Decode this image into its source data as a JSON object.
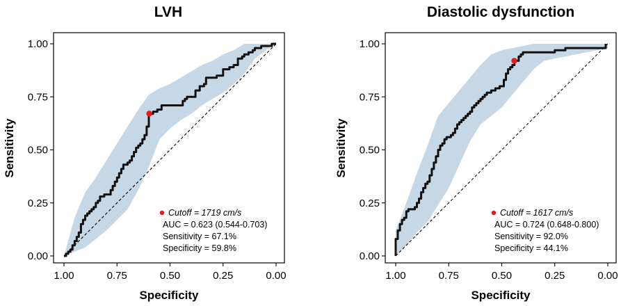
{
  "chart_data": [
    {
      "type": "line",
      "title": "LVH",
      "xlabel": "Specificity",
      "ylabel": "Sensitivity",
      "xlim": [
        1.0,
        0.0
      ],
      "ylim": [
        0.0,
        1.0
      ],
      "xticks": [
        "1.00",
        "0.75",
        "0.50",
        "0.25",
        "0.00"
      ],
      "yticks": [
        "0.00",
        "0.25",
        "0.50",
        "0.75",
        "1.00"
      ],
      "colors": {
        "curve": "#111111",
        "band": "#c6d7e6",
        "cutoff": "#e41a1c",
        "diagonal": "#000000"
      },
      "roc": {
        "specificity": [
          1.0,
          0.99,
          0.98,
          0.97,
          0.96,
          0.95,
          0.94,
          0.93,
          0.92,
          0.91,
          0.9,
          0.89,
          0.88,
          0.87,
          0.86,
          0.85,
          0.84,
          0.83,
          0.82,
          0.81,
          0.8,
          0.79,
          0.78,
          0.77,
          0.76,
          0.75,
          0.74,
          0.73,
          0.72,
          0.71,
          0.7,
          0.69,
          0.68,
          0.67,
          0.66,
          0.65,
          0.64,
          0.63,
          0.62,
          0.61,
          0.6,
          0.58,
          0.56,
          0.55,
          0.54,
          0.5,
          0.45,
          0.44,
          0.43,
          0.42,
          0.4,
          0.38,
          0.36,
          0.34,
          0.33,
          0.32,
          0.3,
          0.28,
          0.25,
          0.22,
          0.2,
          0.18,
          0.16,
          0.15,
          0.13,
          0.11,
          0.1,
          0.07,
          0.04,
          0.02,
          0.0
        ],
        "sensitivity": [
          0.0,
          0.01,
          0.02,
          0.03,
          0.05,
          0.07,
          0.09,
          0.11,
          0.15,
          0.17,
          0.19,
          0.2,
          0.21,
          0.22,
          0.23,
          0.25,
          0.26,
          0.28,
          0.28,
          0.29,
          0.29,
          0.29,
          0.31,
          0.33,
          0.35,
          0.37,
          0.39,
          0.41,
          0.43,
          0.43,
          0.44,
          0.45,
          0.47,
          0.49,
          0.51,
          0.52,
          0.53,
          0.55,
          0.57,
          0.61,
          0.67,
          0.68,
          0.69,
          0.69,
          0.71,
          0.71,
          0.71,
          0.73,
          0.74,
          0.75,
          0.75,
          0.78,
          0.8,
          0.81,
          0.84,
          0.84,
          0.84,
          0.85,
          0.88,
          0.89,
          0.9,
          0.93,
          0.94,
          0.95,
          0.96,
          0.97,
          0.98,
          0.99,
          0.99,
          1.0,
          1.0
        ]
      },
      "ci_band": {
        "specificity": [
          1.0,
          0.95,
          0.9,
          0.85,
          0.8,
          0.75,
          0.7,
          0.65,
          0.6,
          0.55,
          0.5,
          0.45,
          0.4,
          0.35,
          0.3,
          0.25,
          0.2,
          0.15,
          0.1,
          0.05,
          0.0
        ],
        "upper": [
          0.0,
          0.18,
          0.3,
          0.37,
          0.45,
          0.53,
          0.61,
          0.69,
          0.76,
          0.79,
          0.81,
          0.84,
          0.87,
          0.9,
          0.92,
          0.95,
          0.97,
          1.0,
          1.0,
          1.0,
          1.0
        ],
        "lower": [
          0.0,
          0.02,
          0.04,
          0.08,
          0.12,
          0.17,
          0.22,
          0.31,
          0.42,
          0.55,
          0.6,
          0.64,
          0.67,
          0.71,
          0.74,
          0.77,
          0.81,
          0.86,
          0.93,
          0.97,
          1.0
        ]
      },
      "cutoff_point": {
        "specificity": 0.598,
        "sensitivity": 0.671
      },
      "annotation": {
        "cutoff": "Cutoff = 1719 cm/s",
        "auc": "AUC = 0.623 (0.544-0.703)",
        "sensitivity": "Sensitivity = 67.1%",
        "specificity": "Specificity = 59.8%"
      }
    },
    {
      "type": "line",
      "title": "Diastolic dysfunction",
      "xlabel": "Specificity",
      "ylabel": "Sensitivity",
      "xlim": [
        1.0,
        0.0
      ],
      "ylim": [
        0.0,
        1.0
      ],
      "xticks": [
        "1.00",
        "0.75",
        "0.50",
        "0.25",
        "0.00"
      ],
      "yticks": [
        "0.00",
        "0.25",
        "0.50",
        "0.75",
        "1.00"
      ],
      "colors": {
        "curve": "#111111",
        "band": "#c6d7e6",
        "cutoff": "#e41a1c",
        "diagonal": "#000000"
      },
      "roc": {
        "specificity": [
          1.0,
          1.0,
          0.99,
          0.99,
          0.98,
          0.98,
          0.97,
          0.96,
          0.95,
          0.95,
          0.94,
          0.93,
          0.92,
          0.91,
          0.9,
          0.89,
          0.88,
          0.87,
          0.86,
          0.85,
          0.84,
          0.83,
          0.82,
          0.81,
          0.8,
          0.79,
          0.78,
          0.77,
          0.76,
          0.75,
          0.74,
          0.73,
          0.72,
          0.71,
          0.7,
          0.69,
          0.68,
          0.67,
          0.66,
          0.65,
          0.64,
          0.63,
          0.62,
          0.61,
          0.6,
          0.59,
          0.58,
          0.57,
          0.56,
          0.55,
          0.54,
          0.53,
          0.52,
          0.51,
          0.5,
          0.49,
          0.48,
          0.47,
          0.46,
          0.45,
          0.44,
          0.43,
          0.42,
          0.41,
          0.4,
          0.38,
          0.36,
          0.34,
          0.3,
          0.25,
          0.2,
          0.15,
          0.1,
          0.05,
          0.02,
          0.01,
          0.01
        ],
        "sensitivity": [
          0.0,
          0.08,
          0.1,
          0.12,
          0.14,
          0.15,
          0.17,
          0.18,
          0.19,
          0.21,
          0.22,
          0.22,
          0.22,
          0.23,
          0.25,
          0.27,
          0.3,
          0.32,
          0.34,
          0.35,
          0.38,
          0.41,
          0.44,
          0.47,
          0.5,
          0.52,
          0.53,
          0.55,
          0.56,
          0.56,
          0.57,
          0.58,
          0.6,
          0.62,
          0.63,
          0.64,
          0.65,
          0.66,
          0.67,
          0.68,
          0.7,
          0.71,
          0.72,
          0.73,
          0.74,
          0.75,
          0.76,
          0.77,
          0.77,
          0.78,
          0.78,
          0.79,
          0.79,
          0.8,
          0.8,
          0.83,
          0.86,
          0.88,
          0.89,
          0.9,
          0.92,
          0.92,
          0.94,
          0.95,
          0.96,
          0.96,
          0.96,
          0.96,
          0.96,
          0.97,
          0.98,
          0.98,
          0.98,
          0.98,
          0.98,
          0.99,
          1.0
        ]
      },
      "ci_band": {
        "specificity": [
          1.0,
          0.95,
          0.9,
          0.85,
          0.8,
          0.75,
          0.7,
          0.65,
          0.6,
          0.55,
          0.5,
          0.45,
          0.4,
          0.35,
          0.3,
          0.25,
          0.2,
          0.15,
          0.1,
          0.05,
          0.0
        ],
        "upper": [
          0.12,
          0.25,
          0.39,
          0.52,
          0.66,
          0.72,
          0.78,
          0.84,
          0.9,
          0.95,
          0.97,
          0.98,
          0.99,
          1.0,
          1.0,
          1.0,
          1.0,
          1.0,
          1.0,
          1.0,
          1.0
        ],
        "lower": [
          0.0,
          0.05,
          0.11,
          0.16,
          0.24,
          0.32,
          0.43,
          0.54,
          0.62,
          0.66,
          0.7,
          0.76,
          0.82,
          0.88,
          0.92,
          0.93,
          0.94,
          0.95,
          0.96,
          0.97,
          0.98
        ]
      },
      "cutoff_point": {
        "specificity": 0.441,
        "sensitivity": 0.92
      },
      "annotation": {
        "cutoff": "Cutoff = 1617 cm/s",
        "auc": "AUC = 0.724 (0.648-0.800)",
        "sensitivity": "Sensitivity = 92.0%",
        "specificity": "Specificity = 44.1%"
      }
    }
  ]
}
